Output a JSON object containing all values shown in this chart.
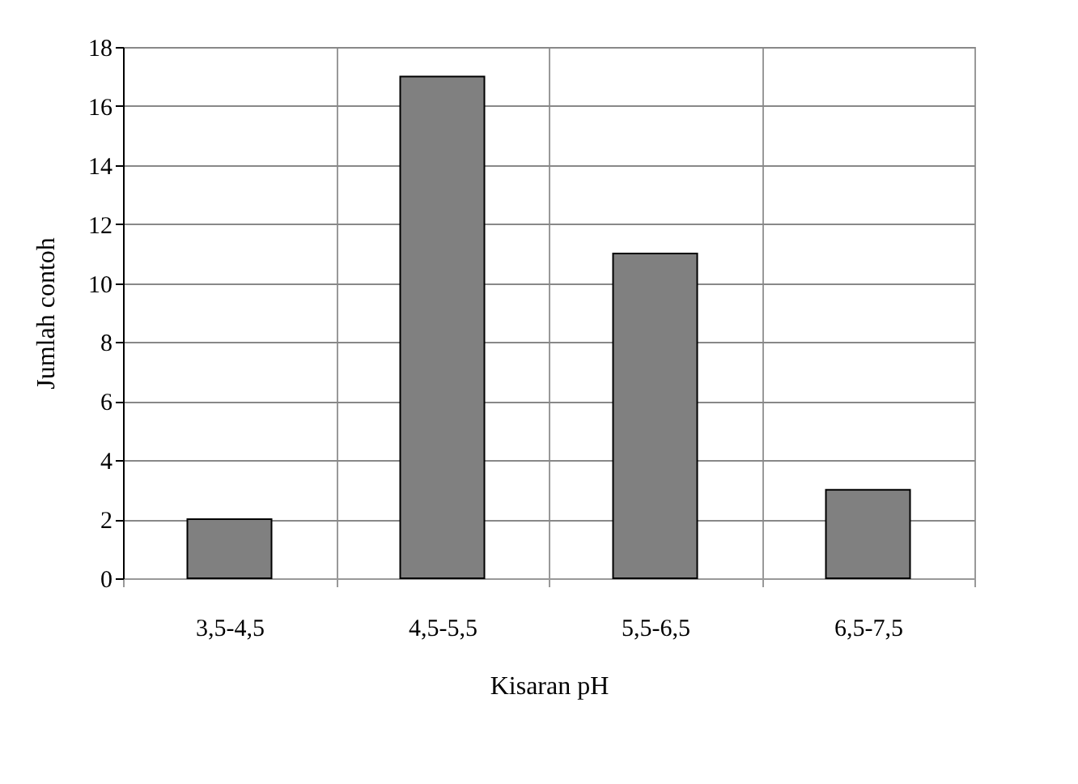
{
  "chart_data": {
    "type": "bar",
    "xlabel": "Kisaran pH",
    "ylabel": "Jumlah contoh",
    "categories": [
      "3,5-4,5",
      "4,5-5,5",
      "5,5-6,5",
      "6,5-7,5"
    ],
    "values": [
      2,
      17,
      11,
      3
    ],
    "color": "#808080",
    "ylim": [
      0,
      18
    ],
    "yticks": [
      0,
      2,
      4,
      6,
      8,
      10,
      12,
      14,
      16,
      18
    ],
    "grid": true
  }
}
